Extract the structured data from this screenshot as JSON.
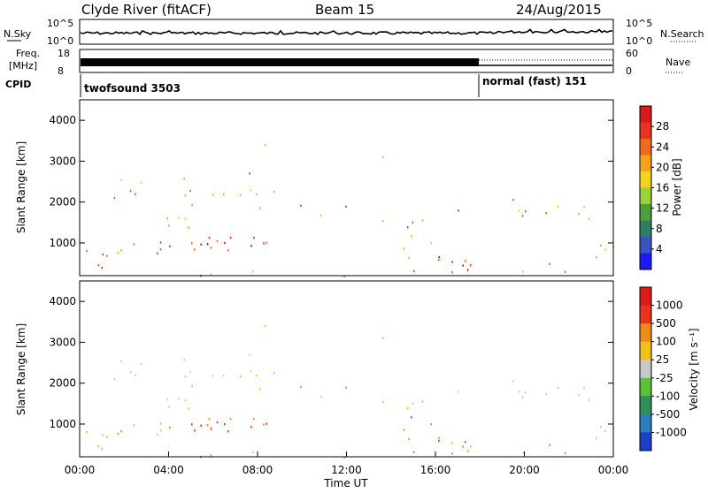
{
  "header": {
    "station": "Clyde River (fitACF)",
    "beam": "Beam 15",
    "date": "24/Aug/2015"
  },
  "noise_panel": {
    "left_label": "N.Sky",
    "right_label": "N.Search",
    "ticks": [
      "10^5",
      "10^0"
    ],
    "right_ticks": [
      "10^5",
      "10^0"
    ]
  },
  "freq_panel": {
    "left_label_1": "Freq.",
    "left_label_2": "[MHz]",
    "left_ticks": [
      "18",
      "8"
    ],
    "right_ticks": [
      "60",
      "0"
    ],
    "right_label": "Nave"
  },
  "cpid": {
    "label": "CPID",
    "segments": [
      {
        "name": "twofsound 3503",
        "start_hour": 0,
        "end_hour": 18
      },
      {
        "name": "normal (fast) 151",
        "start_hour": 18,
        "end_hour": 24
      }
    ]
  },
  "chart_data": [
    {
      "type": "heatmap",
      "name": "Power",
      "ylabel": "Slant Range [km]",
      "xlabel": "",
      "xlim": [
        0,
        24
      ],
      "ylim": [
        200,
        4500
      ],
      "y_ticks": [
        "1000",
        "2000",
        "3000",
        "4000"
      ],
      "colorbar": {
        "label": "Power [dB]",
        "ticks": [
          "4",
          "8",
          "12",
          "16",
          "20",
          "24",
          "28"
        ],
        "colors": [
          "#1a1aff",
          "#3a53c0",
          "#2f7f65",
          "#4aa13a",
          "#9bd13a",
          "#f6d21a",
          "#f6a21a",
          "#f26a1a",
          "#e8341a",
          "#d91a1a"
        ]
      }
    },
    {
      "type": "heatmap",
      "name": "Velocity",
      "ylabel": "Slant Range [km]",
      "xlabel": "Time UT",
      "xlim": [
        0,
        24
      ],
      "ylim": [
        200,
        4500
      ],
      "y_ticks": [
        "1000",
        "2000",
        "3000",
        "4000"
      ],
      "x_ticks": [
        "00:00",
        "04:00",
        "08:00",
        "12:00",
        "16:00",
        "20:00",
        "00:00"
      ],
      "colorbar": {
        "label": "Velocity [m s⁻¹]",
        "ticks": [
          "1000",
          "500",
          "100",
          "25",
          "-25",
          "-100",
          "-500",
          "-1000"
        ],
        "colors": [
          "#1a3fc8",
          "#2d7ec0",
          "#2f8f5a",
          "#5cc03a",
          "#c8c8c8",
          "#f2c21a",
          "#f08a1a",
          "#e8341a",
          "#e01a1a"
        ]
      }
    }
  ]
}
